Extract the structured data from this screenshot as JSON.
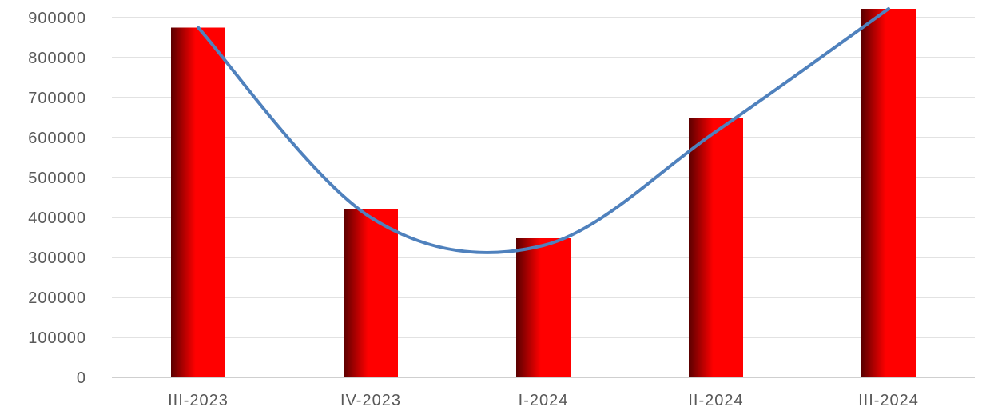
{
  "chart_data": {
    "type": "bar",
    "categories": [
      "III-2023",
      "IV-2023",
      "I-2024",
      "II-2024",
      "III-2024"
    ],
    "series": [
      {
        "values": [
          875000,
          420000,
          348000,
          650000,
          922000
        ]
      }
    ],
    "trendline": {
      "type": "polynomial",
      "points": [
        {
          "x": "III-2023",
          "y": 875000
        },
        {
          "x": "IV-2023",
          "y": 400000
        },
        {
          "x": "I-2024",
          "y": 330000
        },
        {
          "x": "II-2024",
          "y": 615000
        },
        {
          "x": "III-2024",
          "y": 922000
        }
      ]
    },
    "title": "",
    "xlabel": "",
    "ylabel": "",
    "ylim": [
      0,
      900000
    ],
    "yticks": [
      "0",
      "100000",
      "200000",
      "300000",
      "400000",
      "500000",
      "600000",
      "700000",
      "800000",
      "900000"
    ],
    "grid": true,
    "legend": "none",
    "colors": {
      "bar": "#ff0000",
      "bar_shadow": "#5a0000",
      "trendline": "#4f81bd",
      "grid": "#d9d9d9",
      "tick_text": "#595959"
    }
  }
}
